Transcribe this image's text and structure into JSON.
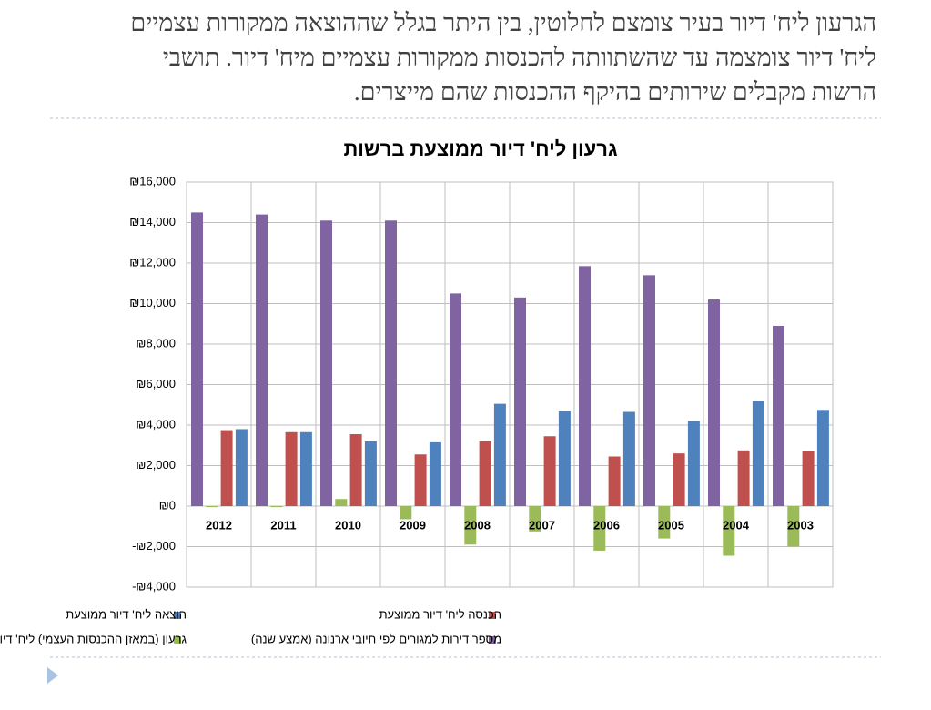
{
  "header": {
    "lines": [
      "הגרעון ליח' דיור בעיר צומצם לחלוטין, בין היתר בגלל שההוצאה ממקורות עצמיים",
      "ליח' דיור צומצמה עד שהשתוותה להכנסות ממקורות עצמיים מיח' דיור. תושבי",
      "הרשות מקבלים שירותים בהיקף ההכנסות שהם מייצרים."
    ]
  },
  "chart_data": {
    "type": "bar",
    "title": "גרעון ליח' דיור ממוצעת ברשות",
    "categories": [
      "2012",
      "2011",
      "2010",
      "2009",
      "2008",
      "2007",
      "2006",
      "2005",
      "2004",
      "2003"
    ],
    "series": [
      {
        "name": "מספר דירות למגורים לפי חיובי ארנונה (אמצע שנה)",
        "color": "#8064a2",
        "values": [
          14500,
          14400,
          14100,
          14100,
          10500,
          10300,
          11850,
          11400,
          10200,
          8900
        ]
      },
      {
        "name": "גרעון (במאזן ההכנסות העצמי) ליח' דיור ממוצעת",
        "color": "#9bbb59",
        "values": [
          -50,
          -50,
          350,
          -650,
          -1900,
          -1250,
          -2200,
          -1600,
          -2450,
          -2000
        ]
      },
      {
        "name": "הכנסה ליח' דיור ממוצעת",
        "color": "#c0504d",
        "values": [
          3750,
          3650,
          3550,
          2550,
          3200,
          3450,
          2450,
          2600,
          2750,
          2700
        ]
      },
      {
        "name": "הוצאה ליח' דיור ממוצעת",
        "color": "#4f81bd",
        "values": [
          3800,
          3650,
          3200,
          3150,
          5050,
          4700,
          4650,
          4200,
          5200,
          4750
        ]
      }
    ],
    "ylim": [
      -4000,
      16000
    ],
    "yticks": [
      {
        "value": -4000,
        "label": "-₪4,000"
      },
      {
        "value": -2000,
        "label": "-₪2,000"
      },
      {
        "value": 0,
        "label": "₪0"
      },
      {
        "value": 2000,
        "label": "₪2,000"
      },
      {
        "value": 4000,
        "label": "₪4,000"
      },
      {
        "value": 6000,
        "label": "₪6,000"
      },
      {
        "value": 8000,
        "label": "₪8,000"
      },
      {
        "value": 10000,
        "label": "₪10,000"
      },
      {
        "value": 12000,
        "label": "₪12,000"
      },
      {
        "value": 14000,
        "label": "₪14,000"
      },
      {
        "value": 16000,
        "label": "₪16,000"
      }
    ],
    "grid": true
  }
}
